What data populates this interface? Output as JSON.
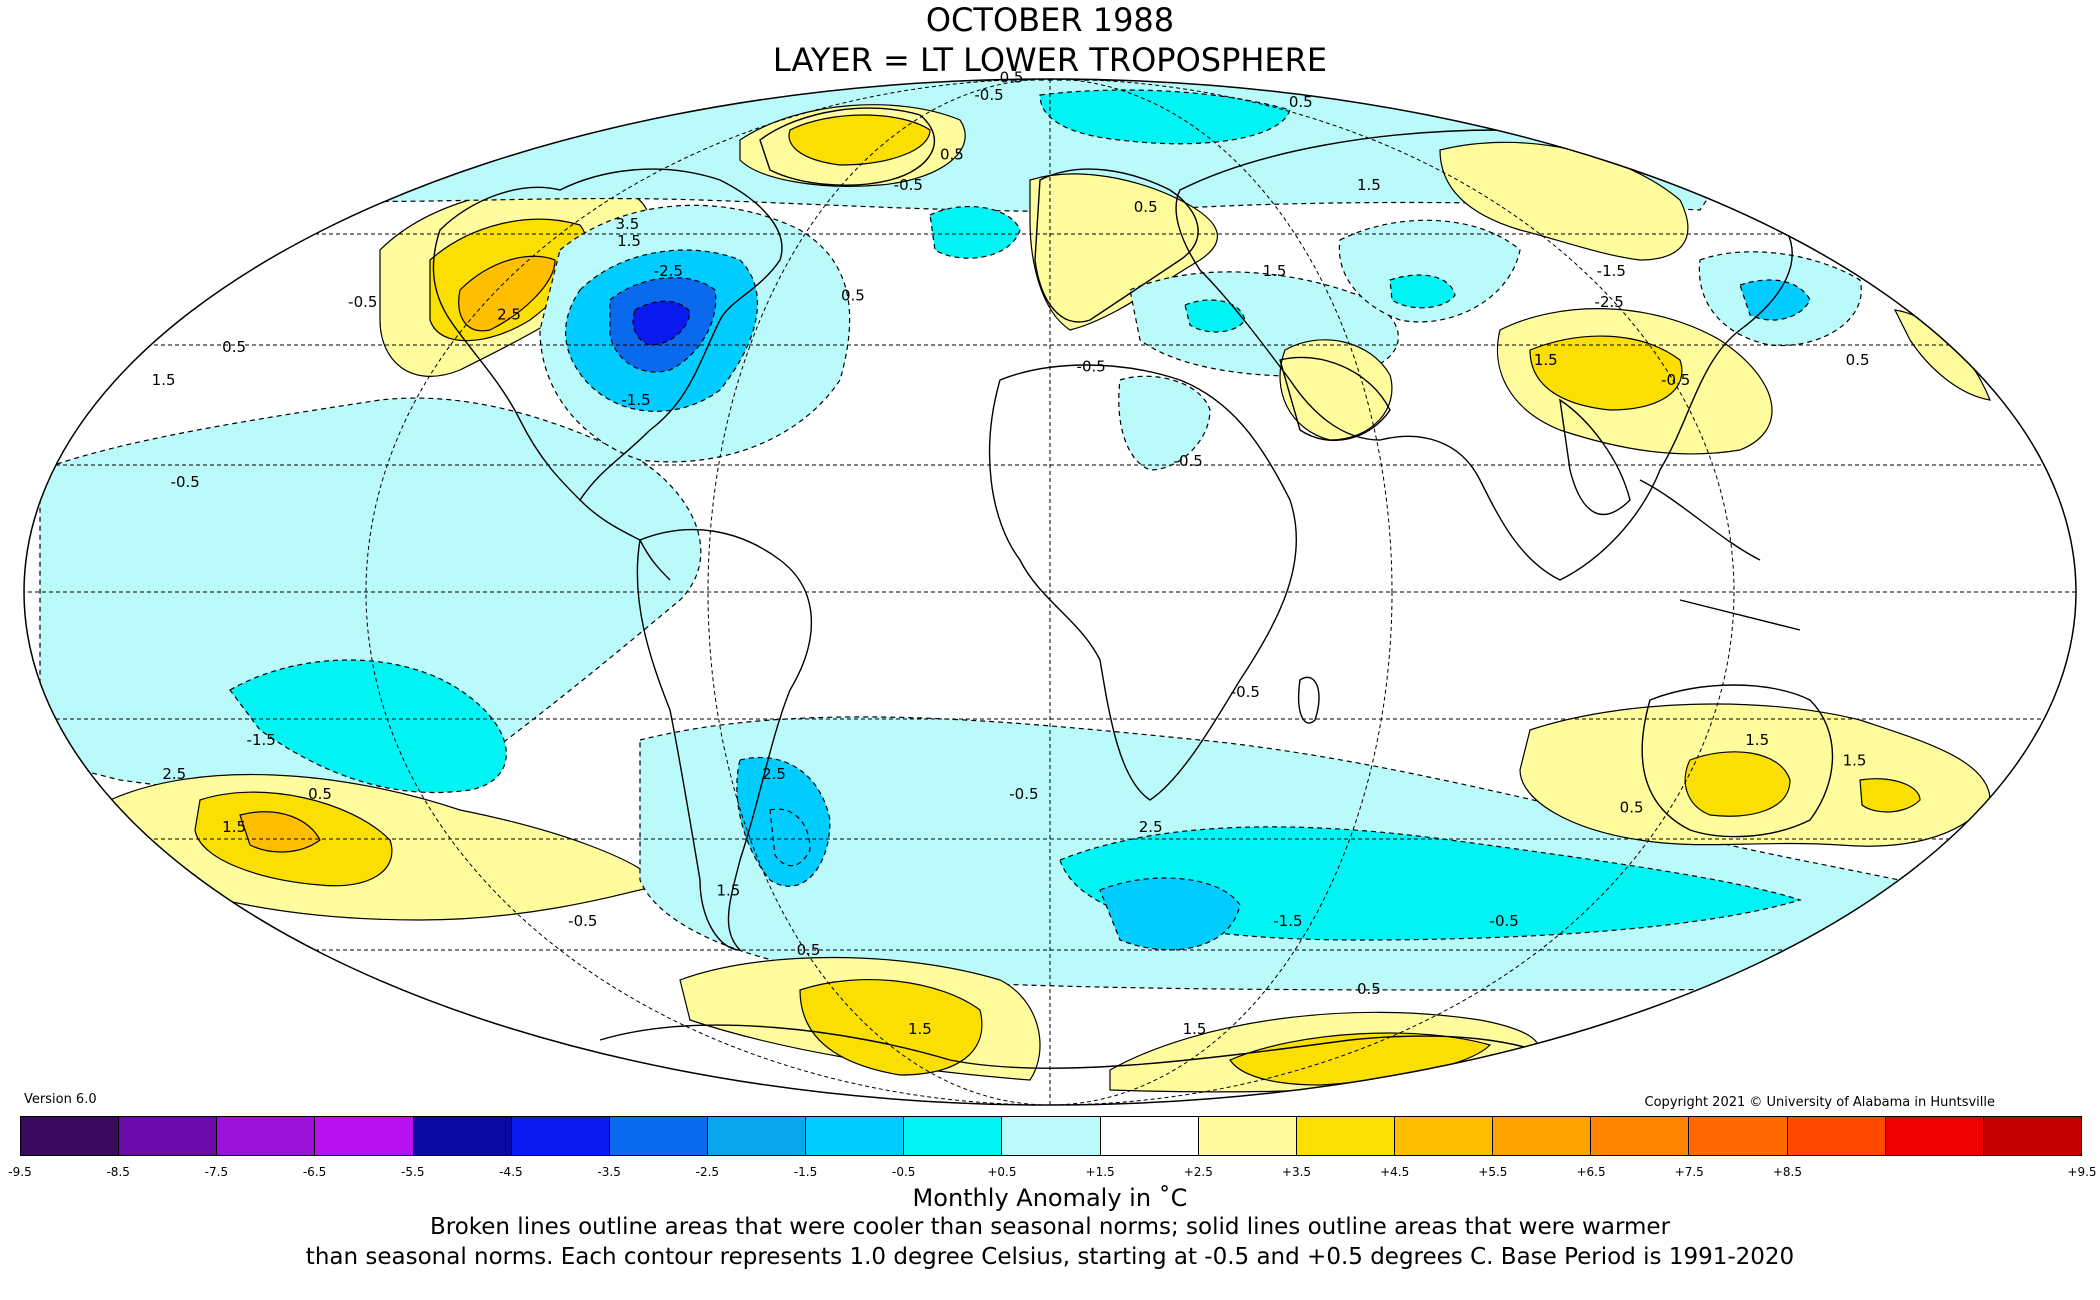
{
  "title": {
    "line1": "OCTOBER 1988",
    "line2": "LAYER = LT LOWER TROPOSPHERE"
  },
  "version": "Version 6.0",
  "copyright": "Copyright 2021 © University of Alabama in Huntsville",
  "colorbar": {
    "ticks": [
      "-9.5",
      "-8.5",
      "-7.5",
      "-6.5",
      "-5.5",
      "-4.5",
      "-3.5",
      "-2.5",
      "-1.5",
      "-0.5",
      "+0.5",
      "+1.5",
      "+2.5",
      "+3.5",
      "+4.5",
      "+5.5",
      "+6.5",
      "+7.5",
      "+8.5",
      "+9.5"
    ],
    "colors": [
      "#3a0a5e",
      "#6a0aa8",
      "#9a12d8",
      "#b810f0",
      "#0a0aa0",
      "#0a1aee",
      "#0a6aee",
      "#0aa6ee",
      "#00ccff",
      "#00f4f4",
      "#bafafa",
      "#ffffff",
      "#fffc9e",
      "#fadf00",
      "#ffbf00",
      "#ffa300",
      "#ff8500",
      "#ff6a00",
      "#ff4800",
      "#ee0000",
      "#c40000"
    ]
  },
  "units": "Monthly Anomaly in ˚C",
  "note": {
    "line1": "Broken lines outline areas that were cooler than seasonal norms; solid lines outline areas that were warmer",
    "line2": "than seasonal norms. Each contour represents 1.0 degree Celsius, starting at -0.5 and +0.5 degrees C. Base Period is 1991-2020"
  },
  "contour_labels": [
    {
      "text": "1.5",
      "lon": -170,
      "lat": 30
    },
    {
      "text": "0.5",
      "lon": -162,
      "lat": 35
    },
    {
      "text": "-0.5",
      "lon": -145,
      "lat": 42
    },
    {
      "text": "-0.5",
      "lon": -155,
      "lat": 15
    },
    {
      "text": "2.5",
      "lon": -112,
      "lat": 40
    },
    {
      "text": "1.5",
      "lon": -100,
      "lat": 52
    },
    {
      "text": "3.5",
      "lon": -105,
      "lat": 55
    },
    {
      "text": "-2.5",
      "lon": -85,
      "lat": 47
    },
    {
      "text": "-1.5",
      "lon": -78,
      "lat": 27
    },
    {
      "text": "0.5",
      "lon": -42,
      "lat": 43
    },
    {
      "text": "-0.5",
      "lon": -40,
      "lat": 62
    },
    {
      "text": "0.5",
      "lon": -32,
      "lat": 68
    },
    {
      "text": "-0.5",
      "lon": -38,
      "lat": 82
    },
    {
      "text": "0.5",
      "lon": -60,
      "lat": 88
    },
    {
      "text": "-0.5",
      "lon": 8,
      "lat": 32
    },
    {
      "text": "0.5",
      "lon": 25,
      "lat": 58
    },
    {
      "text": "1.5",
      "lon": 50,
      "lat": 47
    },
    {
      "text": "1.5",
      "lon": 90,
      "lat": 62
    },
    {
      "text": "1.5",
      "lon": 97,
      "lat": 33
    },
    {
      "text": "-1.5",
      "lon": 125,
      "lat": 47
    },
    {
      "text": "-2.5",
      "lon": 118,
      "lat": 42
    },
    {
      "text": "-0.5",
      "lon": 120,
      "lat": 30
    },
    {
      "text": "0.5",
      "lon": 158,
      "lat": 33
    },
    {
      "text": "0.5",
      "lon": 135,
      "lat": 80
    },
    {
      "text": "-0.5",
      "lon": 25,
      "lat": 18
    },
    {
      "text": "-0.5",
      "lon": 35,
      "lat": -15
    },
    {
      "text": "-0.5",
      "lon": -5,
      "lat": -30
    },
    {
      "text": "2.5",
      "lon": -52,
      "lat": -27
    },
    {
      "text": "1.5",
      "lon": -70,
      "lat": -45
    },
    {
      "text": "-1.5",
      "lon": -145,
      "lat": -22
    },
    {
      "text": "2.5",
      "lon": -165,
      "lat": -27
    },
    {
      "text": "0.5",
      "lon": -140,
      "lat": -30
    },
    {
      "text": "1.5",
      "lon": -162,
      "lat": -35
    },
    {
      "text": "-0.5",
      "lon": -108,
      "lat": -50
    },
    {
      "text": "0.5",
      "lon": -60,
      "lat": -55
    },
    {
      "text": "2.5",
      "lon": 20,
      "lat": -35
    },
    {
      "text": "-1.5",
      "lon": 55,
      "lat": -50
    },
    {
      "text": "-0.5",
      "lon": 105,
      "lat": -50
    },
    {
      "text": "1.5",
      "lon": 130,
      "lat": -22
    },
    {
      "text": "1.5",
      "lon": 150,
      "lat": -25
    },
    {
      "text": "0.5",
      "lon": 113,
      "lat": -32
    },
    {
      "text": "1.5",
      "lon": -45,
      "lat": -70
    },
    {
      "text": "1.5",
      "lon": 50,
      "lat": -70
    },
    {
      "text": "0.5",
      "lon": 90,
      "lat": -62
    }
  ]
}
